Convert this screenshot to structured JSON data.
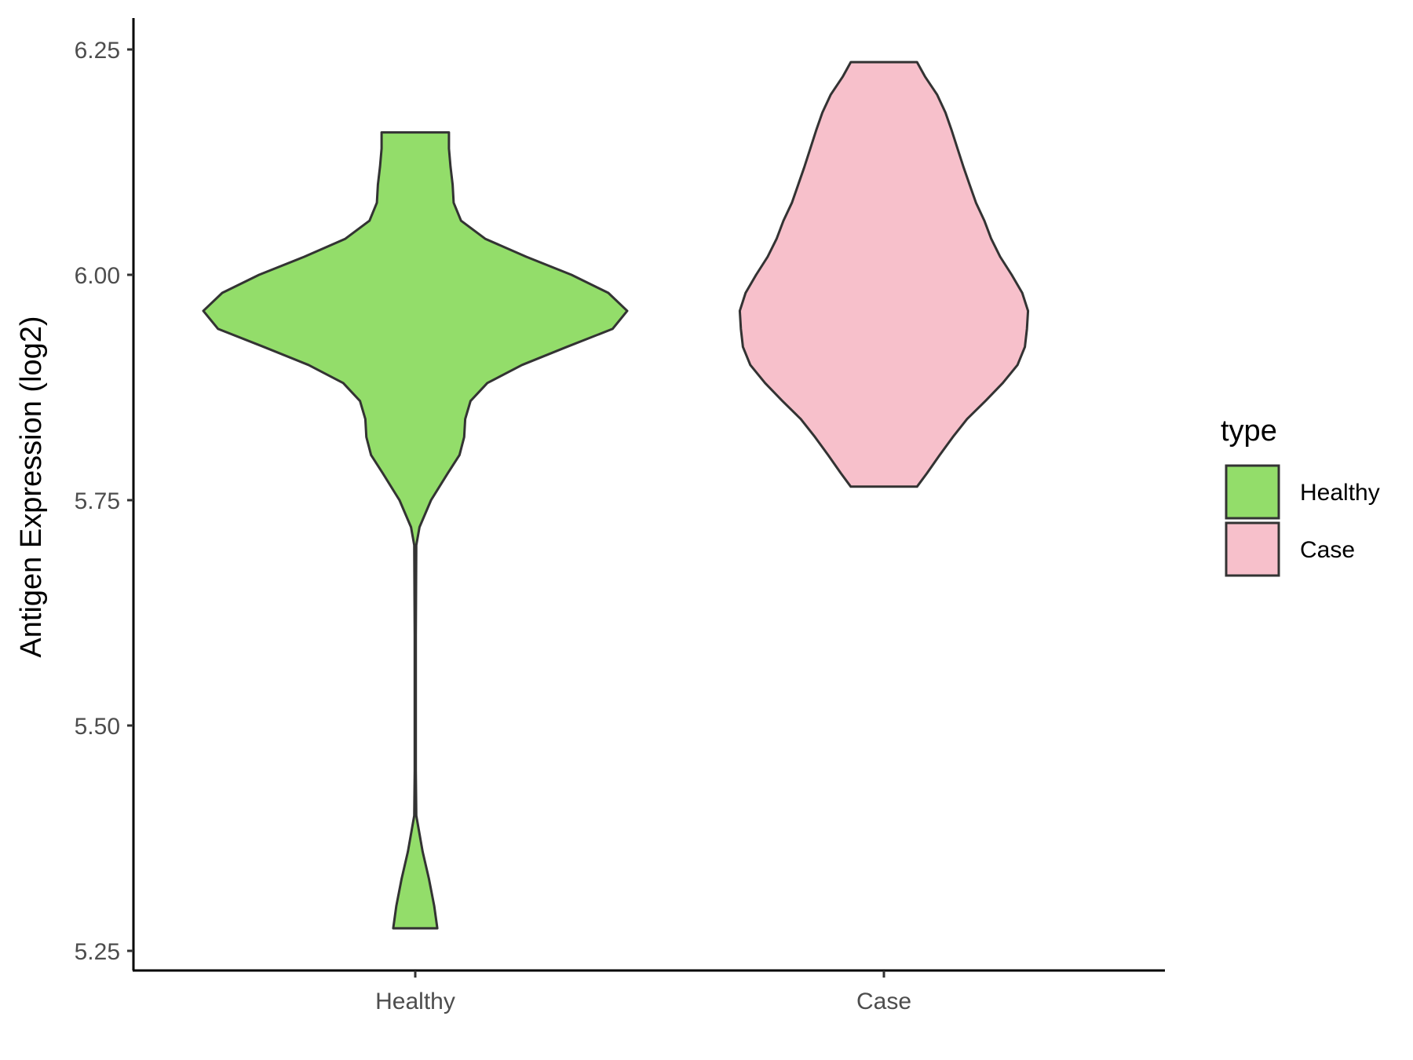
{
  "chart_data": {
    "type": "violin",
    "title": "",
    "xlabel": "",
    "ylabel": "Antigen Expression (log2)",
    "ylim": [
      5.25,
      6.25
    ],
    "yticks": [
      "5.25",
      "5.50",
      "5.75",
      "6.00",
      "6.25"
    ],
    "categories": [
      "Healthy",
      "Case"
    ],
    "grid": false,
    "legend": {
      "title": "type",
      "position": "right",
      "items": [
        {
          "label": "Healthy",
          "color": "#93dd6a"
        },
        {
          "label": "Case",
          "color": "#f7c0cb"
        }
      ]
    },
    "series": [
      {
        "name": "Healthy",
        "color": "#93dd6a",
        "min": 5.275,
        "max": 6.158,
        "profile": [
          [
            5.275,
            0.42
          ],
          [
            5.3,
            0.36
          ],
          [
            5.33,
            0.26
          ],
          [
            5.36,
            0.14
          ],
          [
            5.4,
            0.02
          ],
          [
            5.45,
            0.01
          ],
          [
            5.5,
            0.01
          ],
          [
            5.6,
            0.01
          ],
          [
            5.7,
            0.02
          ],
          [
            5.72,
            0.08
          ],
          [
            5.75,
            0.3
          ],
          [
            5.78,
            0.62
          ],
          [
            5.8,
            0.84
          ],
          [
            5.82,
            0.93
          ],
          [
            5.84,
            0.95
          ],
          [
            5.86,
            1.05
          ],
          [
            5.88,
            1.37
          ],
          [
            5.9,
            2.03
          ],
          [
            5.92,
            2.88
          ],
          [
            5.94,
            3.75
          ],
          [
            5.96,
            4.03
          ],
          [
            5.98,
            3.67
          ],
          [
            6.0,
            2.97
          ],
          [
            6.02,
            2.11
          ],
          [
            6.04,
            1.33
          ],
          [
            6.06,
            0.87
          ],
          [
            6.08,
            0.73
          ],
          [
            6.1,
            0.71
          ],
          [
            6.12,
            0.67
          ],
          [
            6.14,
            0.64
          ],
          [
            6.158,
            0.64
          ]
        ]
      },
      {
        "name": "Case",
        "color": "#f7c0cb",
        "min": 5.765,
        "max": 6.236,
        "profile": [
          [
            5.765,
            0.63
          ],
          [
            5.78,
            0.82
          ],
          [
            5.8,
            1.06
          ],
          [
            5.82,
            1.31
          ],
          [
            5.84,
            1.58
          ],
          [
            5.86,
            1.93
          ],
          [
            5.88,
            2.26
          ],
          [
            5.9,
            2.54
          ],
          [
            5.92,
            2.68
          ],
          [
            5.94,
            2.72
          ],
          [
            5.96,
            2.74
          ],
          [
            5.98,
            2.63
          ],
          [
            6.0,
            2.43
          ],
          [
            6.02,
            2.21
          ],
          [
            6.04,
            2.04
          ],
          [
            6.06,
            1.91
          ],
          [
            6.08,
            1.75
          ],
          [
            6.1,
            1.63
          ],
          [
            6.12,
            1.51
          ],
          [
            6.14,
            1.4
          ],
          [
            6.16,
            1.29
          ],
          [
            6.18,
            1.17
          ],
          [
            6.2,
            1.01
          ],
          [
            6.22,
            0.78
          ],
          [
            6.236,
            0.63
          ]
        ]
      }
    ]
  }
}
